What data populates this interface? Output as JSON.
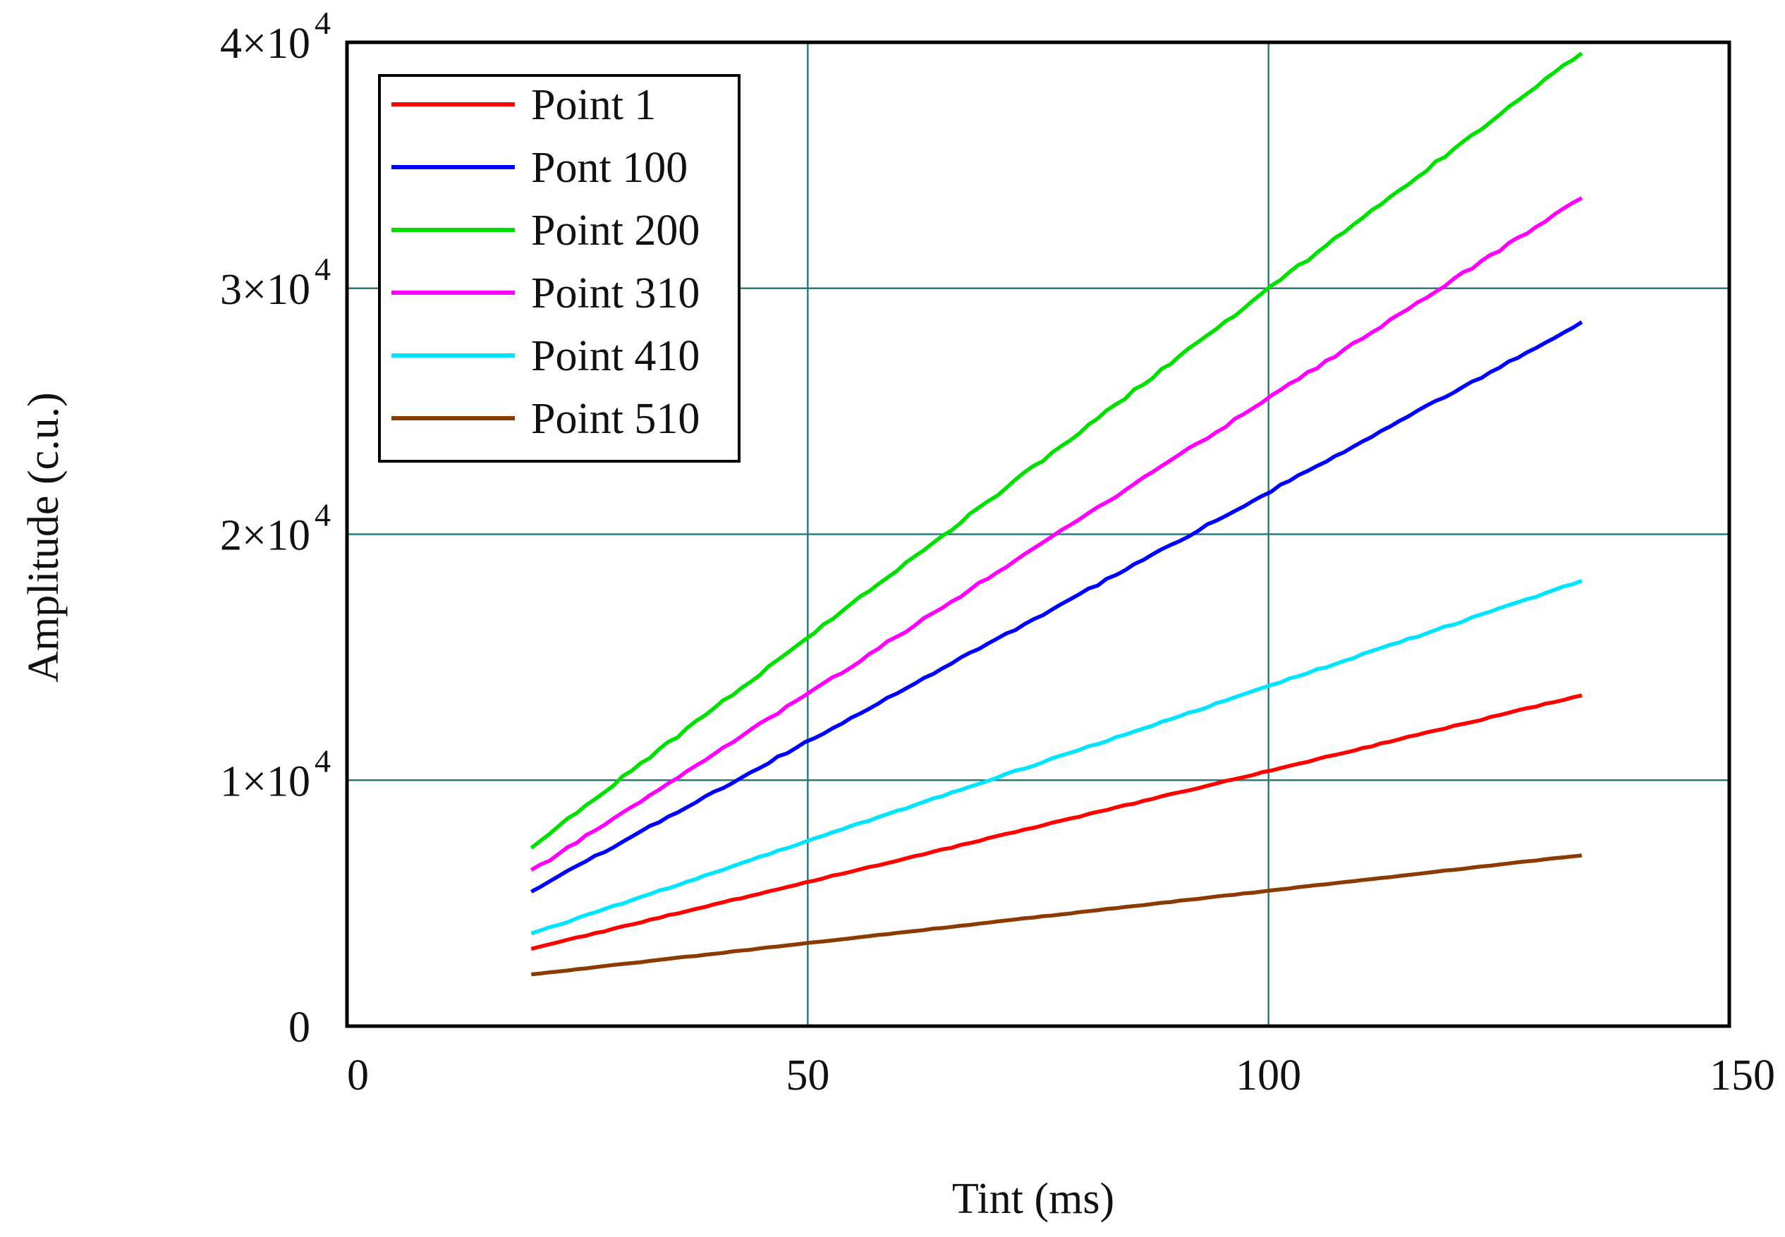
{
  "chart_data": {
    "type": "line",
    "title": "",
    "xlabel": "Tint (ms)",
    "ylabel": "Amplitude (c.u.)",
    "xlim": [
      0,
      150
    ],
    "ylim": [
      0,
      40000
    ],
    "grid": true,
    "legend_position": "top-left",
    "x_ticks": [
      {
        "value": 0,
        "label": "0"
      },
      {
        "value": 50,
        "label": "50"
      },
      {
        "value": 100,
        "label": "100"
      },
      {
        "value": 150,
        "label": "150"
      }
    ],
    "y_ticks": [
      {
        "value": 0,
        "mantissa": "0",
        "exp": ""
      },
      {
        "value": 10000,
        "mantissa": "1×10",
        "exp": "4"
      },
      {
        "value": 20000,
        "mantissa": "2×10",
        "exp": "4"
      },
      {
        "value": 30000,
        "mantissa": "3×10",
        "exp": "4"
      },
      {
        "value": 40000,
        "mantissa": "4×10",
        "exp": "4"
      }
    ],
    "series": [
      {
        "name": "Point 1",
        "color": "#ff0000",
        "x_start": 20,
        "x_end": 134,
        "y_start": 3150,
        "y_end": 13450
      },
      {
        "name": "Pont 100",
        "color": "#0000ff",
        "x_start": 20,
        "x_end": 134,
        "y_start": 5500,
        "y_end": 28600
      },
      {
        "name": "Point 200",
        "color": "#00e000",
        "x_start": 20,
        "x_end": 134,
        "y_start": 7300,
        "y_end": 39600
      },
      {
        "name": "Point 310",
        "color": "#ff00ff",
        "x_start": 20,
        "x_end": 134,
        "y_start": 6300,
        "y_end": 33700
      },
      {
        "name": "Point 410",
        "color": "#00e5ff",
        "x_start": 20,
        "x_end": 134,
        "y_start": 3750,
        "y_end": 18100
      },
      {
        "name": "Point 510",
        "color": "#8b3a00",
        "x_start": 20,
        "x_end": 134,
        "y_start": 2100,
        "y_end": 6950
      }
    ],
    "grid_color": "#2e7a7a"
  }
}
